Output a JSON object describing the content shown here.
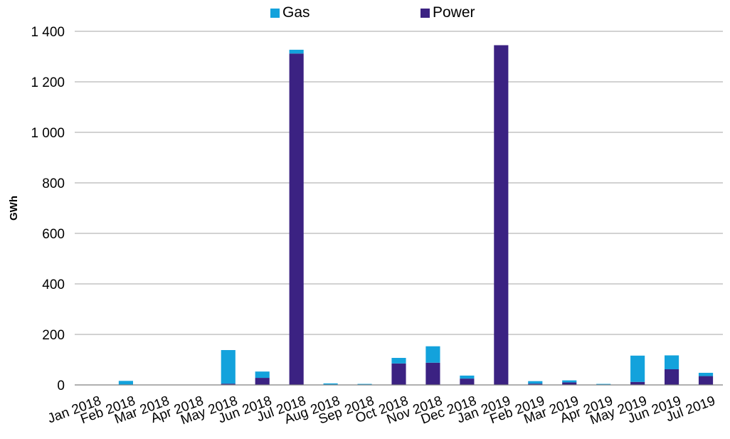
{
  "chart_data": {
    "type": "bar",
    "stacked": true,
    "title": "",
    "xlabel": "",
    "ylabel": "GWh",
    "ylim": [
      0,
      1400
    ],
    "yticks": [
      0,
      200,
      400,
      600,
      800,
      1000,
      1200,
      1400
    ],
    "ytick_labels": [
      "0",
      "200",
      "400",
      "600",
      "800",
      "1 000",
      "1 200",
      "1 400"
    ],
    "grid": true,
    "legend_position": "top-center",
    "categories": [
      "Jan 2018",
      "Feb 2018",
      "Mar 2018",
      "Apr 2018",
      "May 2018",
      "Jun 2018",
      "Jul 2018",
      "Aug 2018",
      "Sep 2018",
      "Oct 2018",
      "Nov 2018",
      "Dec 2018",
      "Jan 2019",
      "Feb 2019",
      "Mar 2019",
      "Apr 2019",
      "May 2019",
      "Jun 2019",
      "Jul 2019"
    ],
    "series": [
      {
        "name": "Power",
        "color": "#3B2282",
        "values": [
          0,
          0,
          0,
          0,
          5,
          28,
          1312,
          0,
          0,
          85,
          88,
          25,
          1345,
          5,
          10,
          0,
          12,
          62,
          35
        ]
      },
      {
        "name": "Gas",
        "color": "#13A2DC",
        "values": [
          0,
          16,
          0,
          0,
          133,
          25,
          15,
          6,
          4,
          22,
          65,
          12,
          0,
          10,
          8,
          4,
          104,
          55,
          13
        ]
      }
    ],
    "legend": [
      {
        "name": "Gas",
        "color": "#13A2DC"
      },
      {
        "name": "Power",
        "color": "#3B2282"
      }
    ]
  }
}
